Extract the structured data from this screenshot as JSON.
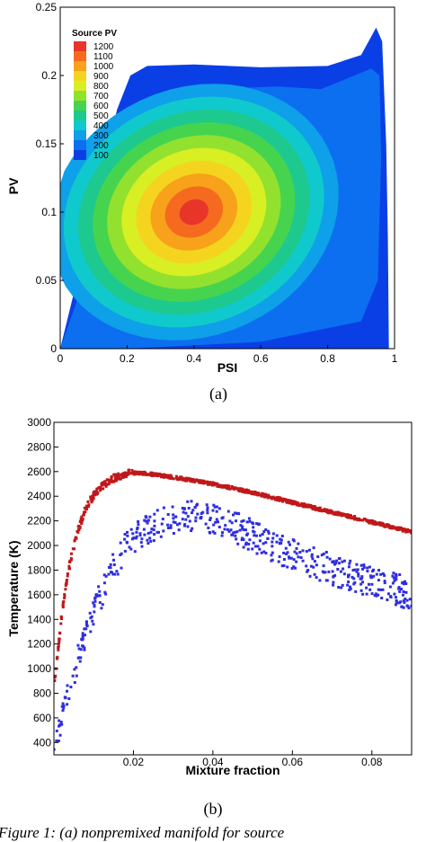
{
  "chart_data": [
    {
      "type": "contour",
      "panel_label": "(a)",
      "xlabel": "PSI",
      "ylabel": "PV",
      "xlim": [
        0,
        1
      ],
      "ylim": [
        0,
        0.25
      ],
      "xticks": [
        "0",
        "0.2",
        "0.4",
        "0.6",
        "0.8",
        "1"
      ],
      "yticks": [
        "0",
        "0.05",
        "0.1",
        "0.15",
        "0.2",
        "0.25"
      ],
      "legend": {
        "title": "Source PV",
        "position": "top-left",
        "levels": [
          "1200",
          "1100",
          "1000",
          "900",
          "800",
          "700",
          "600",
          "500",
          "400",
          "300",
          "200",
          "100"
        ],
        "colors": [
          "#e8352a",
          "#f56a1f",
          "#f7a21a",
          "#f4d41e",
          "#d8ef24",
          "#93e12f",
          "#46d44f",
          "#1ec98f",
          "#10c9cc",
          "#0ea0e8",
          "#0c6ff0",
          "#0b3fe6"
        ]
      },
      "peak": {
        "x": 0.4,
        "y": 0.1,
        "value": 1200
      }
    },
    {
      "type": "scatter",
      "panel_label": "(b)",
      "xlabel": "Mixture fraction",
      "ylabel": "Temperature (K)",
      "xlim": [
        0,
        0.09
      ],
      "ylim": [
        300,
        3000
      ],
      "xticks": [
        "0.02",
        "0.04",
        "0.06",
        "0.08"
      ],
      "yticks": [
        "400",
        "600",
        "800",
        "1000",
        "1200",
        "1400",
        "1600",
        "1800",
        "2000",
        "2200",
        "2400",
        "2600",
        "2800",
        "3000"
      ],
      "series": [
        {
          "color": "#c0181a",
          "x": [
            0.0,
            0.002,
            0.004,
            0.006,
            0.008,
            0.01,
            0.012,
            0.014,
            0.016,
            0.018,
            0.02,
            0.022,
            0.024,
            0.03,
            0.04,
            0.05,
            0.06,
            0.07,
            0.08,
            0.09
          ],
          "y": [
            850,
            1450,
            1850,
            2120,
            2300,
            2410,
            2480,
            2530,
            2560,
            2580,
            2590,
            2588,
            2580,
            2555,
            2500,
            2430,
            2350,
            2270,
            2190,
            2110
          ]
        },
        {
          "color": "#2e2ee0",
          "x": [
            0.0,
            0.002,
            0.004,
            0.006,
            0.008,
            0.01,
            0.012,
            0.014,
            0.016,
            0.018,
            0.02,
            0.025,
            0.03,
            0.035,
            0.04,
            0.045,
            0.05,
            0.055,
            0.06,
            0.065,
            0.07,
            0.075,
            0.08,
            0.085,
            0.09
          ],
          "y": [
            350,
            600,
            850,
            1080,
            1280,
            1450,
            1600,
            1750,
            1870,
            1970,
            2050,
            2150,
            2220,
            2240,
            2200,
            2150,
            2080,
            2000,
            1920,
            1860,
            1800,
            1750,
            1700,
            1660,
            1600
          ]
        }
      ]
    }
  ],
  "caption": "Figure 1: (a) nonpremixed manifold for source"
}
